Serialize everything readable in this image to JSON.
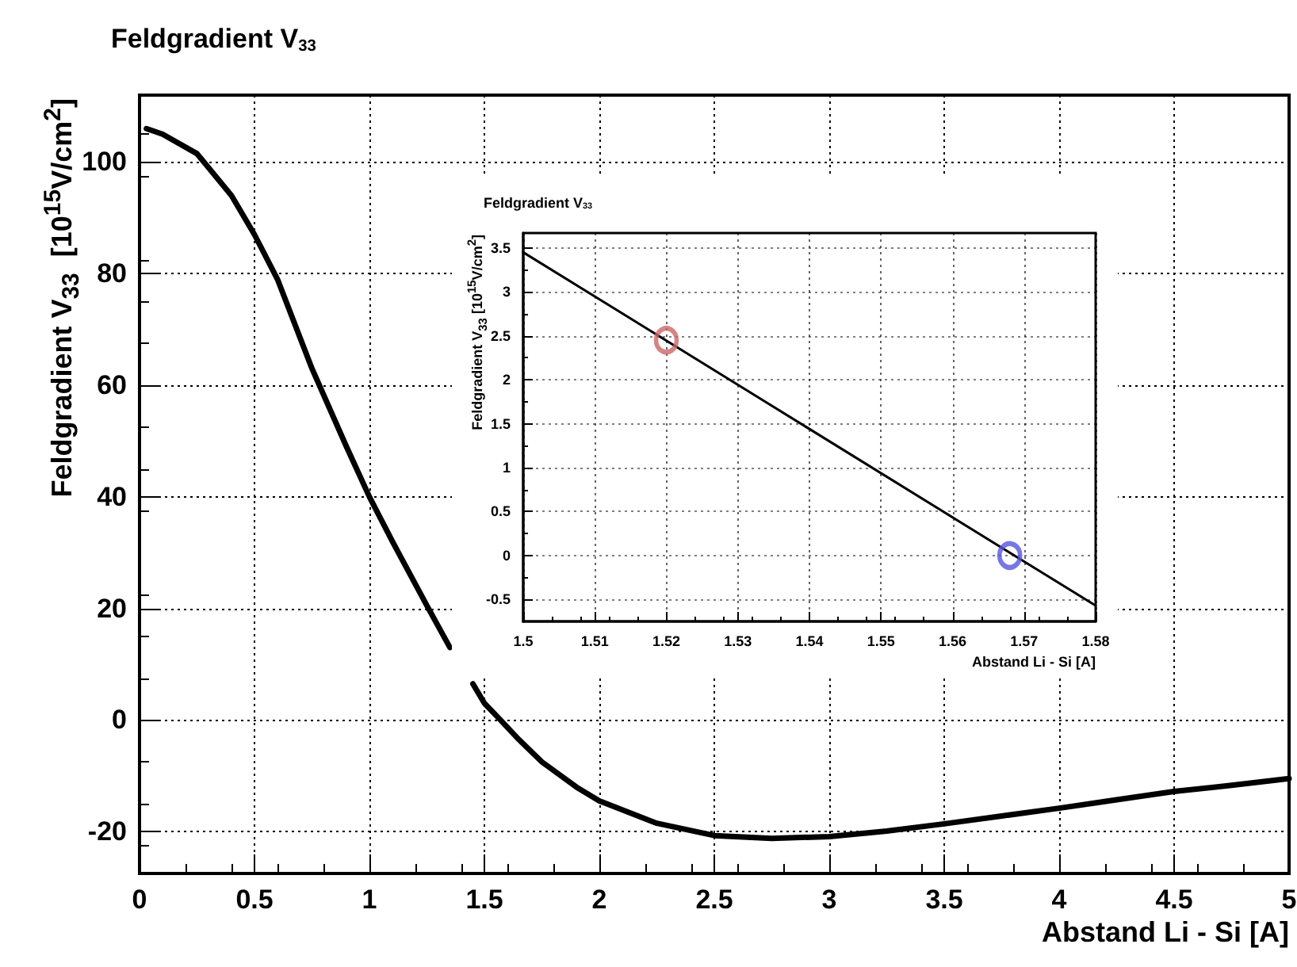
{
  "chart_data": [
    {
      "type": "line",
      "title": "Feldgradient V$_{33}$",
      "xlabel": "Abstand Li - Si [A]",
      "ylabel": "Feldgradient V$_{33}$  [10$^{15}$V/cm$^{2}$]",
      "xlim": [
        0,
        5
      ],
      "ylim": [
        -27.5,
        112
      ],
      "xticks": [
        0,
        0.5,
        1,
        1.5,
        2,
        2.5,
        3,
        3.5,
        4,
        4.5,
        5
      ],
      "yticks": [
        -20,
        0,
        20,
        40,
        60,
        80,
        100
      ],
      "grid": true,
      "series": [
        {
          "color": "#000000",
          "x": [
            0.03,
            0.1,
            0.25,
            0.4,
            0.5,
            0.6,
            0.75,
            0.9,
            1.0,
            1.1,
            1.25,
            1.35,
            1.4,
            1.45,
            1.5,
            1.57,
            1.65,
            1.75,
            1.9,
            2.0,
            2.25,
            2.5,
            2.75,
            3.0,
            3.25,
            3.5,
            3.75,
            4.0,
            4.25,
            4.5,
            4.75,
            5.0
          ],
          "values": [
            106,
            105,
            101.5,
            94,
            87,
            79,
            63,
            49,
            40,
            32,
            20.5,
            13,
            null,
            6.5,
            3,
            0,
            -3.5,
            -7.5,
            -12,
            -14.5,
            -18.5,
            -20.7,
            -21.2,
            -20.9,
            -19.9,
            -18.6,
            -17.2,
            -15.8,
            -14.3,
            -12.8,
            -11.7,
            -10.5
          ]
        }
      ]
    },
    {
      "type": "line",
      "title": "Feldgradient V$_{33}$",
      "xlabel": "Abstand Li - Si [A]",
      "ylabel": "Feldgradient V$_{33}$ [10$^{15}$V/cm$^{2}$]",
      "xlim": [
        1.5,
        1.58
      ],
      "ylim": [
        -0.75,
        3.67
      ],
      "xticks": [
        1.5,
        1.51,
        1.52,
        1.53,
        1.54,
        1.55,
        1.56,
        1.57,
        1.58
      ],
      "yticks": [
        -0.5,
        0,
        0.5,
        1,
        1.5,
        2,
        2.5,
        3,
        3.5
      ],
      "grid": true,
      "series": [
        {
          "color": "#000000",
          "x": [
            1.5,
            1.58
          ],
          "values": [
            3.45,
            -0.57
          ]
        },
        {
          "type": "scatter",
          "marker": "circle",
          "color": "#cc6666",
          "x": [
            1.52
          ],
          "values": [
            2.45
          ]
        },
        {
          "type": "scatter",
          "marker": "circle",
          "color": "#5555dd",
          "x": [
            1.568
          ],
          "values": [
            0.0
          ]
        }
      ]
    }
  ]
}
